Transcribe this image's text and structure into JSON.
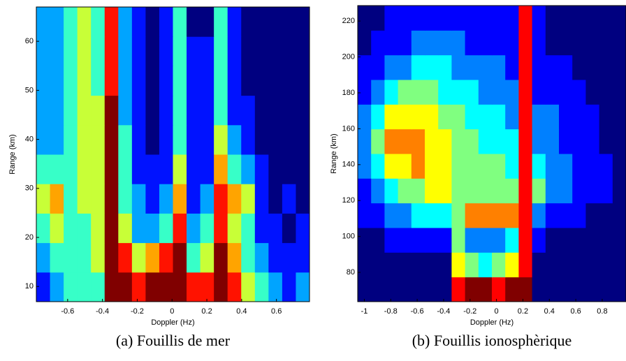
{
  "chart_data": [
    {
      "type": "heatmap",
      "caption": "(a) Fouillis de mer",
      "xlabel": "Doppler (Hz)",
      "ylabel": "Range (km)",
      "colormap": "jet",
      "xlim": [
        -0.78,
        0.79
      ],
      "ylim": [
        6.9,
        67
      ],
      "xticks": [
        -0.6,
        -0.4,
        -0.2,
        0,
        0.2,
        0.4,
        0.6
      ],
      "yticks": [
        10,
        20,
        30,
        40,
        50,
        60
      ],
      "z": [
        [
          3,
          4,
          5,
          5,
          5,
          9,
          9,
          8,
          9,
          9,
          9,
          8,
          8,
          9,
          8,
          6,
          5,
          4,
          3,
          4
        ],
        [
          4,
          5,
          5,
          5,
          6,
          9,
          8,
          6,
          7,
          8,
          9,
          5,
          6,
          9,
          7,
          5,
          4,
          3,
          3,
          3
        ],
        [
          5,
          6,
          5,
          5,
          6,
          9,
          6,
          4,
          4,
          5,
          8,
          4,
          5,
          8,
          6,
          5,
          3,
          3,
          2,
          3
        ],
        [
          6,
          7,
          5,
          6,
          6,
          9,
          5,
          4,
          3,
          4,
          7,
          3,
          4,
          8,
          7,
          6,
          3,
          2,
          3,
          2
        ],
        [
          5,
          5,
          5,
          6,
          6,
          9,
          5,
          3,
          3,
          3,
          6,
          3,
          3,
          7,
          5,
          4,
          3,
          2,
          2,
          2
        ],
        [
          4,
          4,
          5,
          6,
          6,
          9,
          5,
          3,
          2,
          3,
          5,
          3,
          3,
          6,
          4,
          3,
          2,
          2,
          2,
          2
        ],
        [
          4,
          4,
          5,
          6,
          6,
          9,
          4,
          3,
          2,
          3,
          5,
          3,
          3,
          5,
          3,
          3,
          2,
          2,
          2,
          2
        ],
        [
          4,
          4,
          5,
          6,
          5,
          8,
          4,
          3,
          2,
          3,
          5,
          3,
          3,
          5,
          3,
          2,
          2,
          2,
          2,
          2
        ],
        [
          4,
          4,
          5,
          6,
          5,
          8,
          4,
          3,
          2,
          3,
          5,
          3,
          3,
          5,
          3,
          2,
          2,
          2,
          2,
          2
        ],
        [
          4,
          4,
          5,
          6,
          5,
          8,
          4,
          3,
          2,
          3,
          5,
          2,
          2,
          5,
          3,
          2,
          2,
          2,
          2,
          2
        ]
      ]
    },
    {
      "type": "heatmap",
      "caption": "(b) Fouillis ionosphèrique",
      "xlabel": "Doppler (Hz)",
      "ylabel": "Range (km)",
      "colormap": "jet",
      "xlim": [
        -1.05,
        0.98
      ],
      "ylim": [
        63.7,
        228.6
      ],
      "xticks": [
        -1,
        -0.8,
        -0.6,
        -0.4,
        -0.2,
        0,
        0.2,
        0.4,
        0.6,
        0.8
      ],
      "yticks": [
        80,
        100,
        120,
        140,
        160,
        180,
        200,
        220
      ],
      "z": [
        [
          1,
          1,
          1,
          1,
          1,
          1,
          1,
          8,
          9,
          9,
          8,
          9,
          9,
          1,
          1,
          1,
          1,
          1,
          1,
          1
        ],
        [
          1,
          1,
          1,
          1,
          1,
          1,
          1,
          6,
          5,
          4,
          5,
          6,
          8,
          1,
          1,
          1,
          1,
          1,
          1,
          1
        ],
        [
          1,
          1,
          2,
          2,
          2,
          2,
          2,
          5,
          3,
          3,
          3,
          4,
          8,
          2,
          1,
          1,
          1,
          1,
          1,
          1
        ],
        [
          2,
          2,
          3,
          3,
          4,
          4,
          4,
          5,
          7,
          7,
          7,
          7,
          8,
          3,
          2,
          2,
          2,
          1,
          1,
          1
        ],
        [
          2,
          3,
          4,
          5,
          5,
          6,
          6,
          5,
          5,
          5,
          5,
          5,
          8,
          5,
          3,
          3,
          2,
          2,
          2,
          1
        ],
        [
          3,
          4,
          6,
          6,
          7,
          6,
          6,
          5,
          5,
          5,
          5,
          4,
          8,
          4,
          3,
          3,
          2,
          2,
          2,
          1
        ],
        [
          3,
          5,
          7,
          7,
          7,
          6,
          6,
          5,
          5,
          4,
          4,
          4,
          8,
          3,
          3,
          2,
          2,
          2,
          1,
          1
        ],
        [
          3,
          4,
          6,
          6,
          6,
          6,
          5,
          5,
          4,
          4,
          4,
          3,
          8,
          3,
          3,
          2,
          2,
          2,
          1,
          1
        ],
        [
          2,
          3,
          4,
          5,
          5,
          5,
          4,
          4,
          4,
          3,
          3,
          3,
          8,
          2,
          2,
          2,
          2,
          1,
          1,
          1
        ],
        [
          2,
          2,
          3,
          3,
          4,
          4,
          4,
          3,
          3,
          3,
          3,
          2,
          8,
          2,
          2,
          2,
          1,
          1,
          1,
          1
        ],
        [
          1,
          2,
          2,
          2,
          3,
          3,
          3,
          3,
          2,
          2,
          2,
          2,
          8,
          2,
          1,
          1,
          1,
          1,
          1,
          1
        ],
        [
          1,
          1,
          2,
          2,
          2,
          2,
          2,
          2,
          2,
          2,
          2,
          2,
          8,
          2,
          1,
          1,
          1,
          1,
          1,
          1
        ]
      ]
    }
  ]
}
